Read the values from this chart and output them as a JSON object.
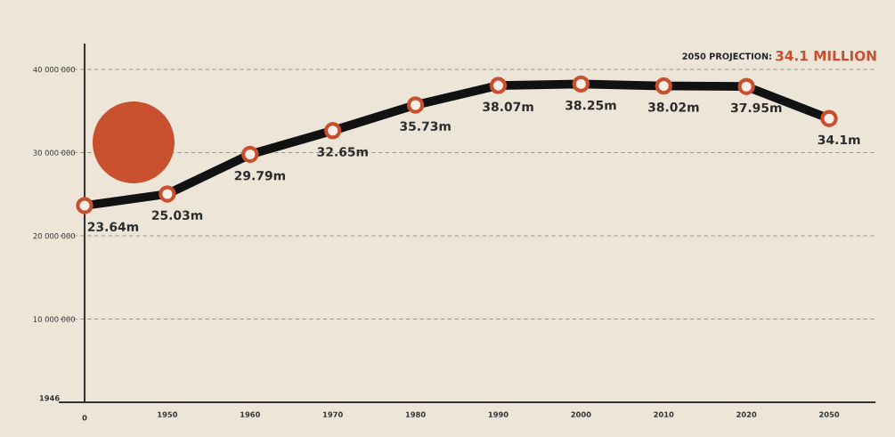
{
  "chart_data": {
    "type": "line",
    "categories": [
      "0",
      "1950",
      "1960",
      "1970",
      "1980",
      "1990",
      "2000",
      "2010",
      "2020",
      "2050"
    ],
    "series": [
      {
        "color": "#111111",
        "values": [
          23640000,
          25030000,
          29790000,
          32650000,
          35730000,
          38070000,
          38250000,
          38020000,
          37950000,
          34100000
        ],
        "value_labels": [
          "23.64m",
          "25.03m",
          "29.79m",
          "32.65m",
          "35.73m",
          "38.07m",
          "38.25m",
          "38.02m",
          "37.95m",
          "34.1m"
        ]
      }
    ],
    "marker": "circle",
    "line_style": "solid",
    "ylim": [
      0,
      43000000
    ],
    "ylabel": "1946",
    "yticks": [
      {
        "value": 0,
        "label": null
      },
      {
        "value": 10000000,
        "label": "10 000 000"
      },
      {
        "value": 20000000,
        "label": "20 000 000"
      },
      {
        "value": 30000000,
        "label": "30 000 000"
      },
      {
        "value": 40000000,
        "label": "40 000 000"
      }
    ],
    "grid": "y",
    "annotations": [
      "2050 PROJECTION:",
      "34.1 MILLION"
    ]
  }
}
